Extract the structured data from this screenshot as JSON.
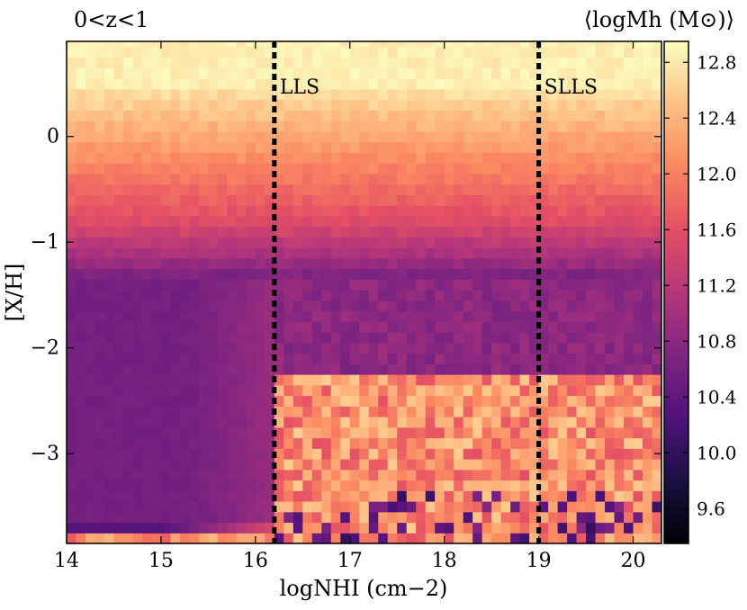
{
  "chart_data": {
    "type": "heatmap",
    "title_left": "0<z<1",
    "colorbar_label": "⟨logMh (M⊙)⟩",
    "xlabel": "logNHI (cm−2)",
    "ylabel": "[X/H]",
    "xlim": [
      14,
      20.3
    ],
    "ylim": [
      -3.85,
      0.9
    ],
    "zlim": [
      9.35,
      12.95
    ],
    "x_ticks": [
      14,
      15,
      16,
      17,
      18,
      19,
      20
    ],
    "x_tick_labels": [
      "14",
      "15",
      "16",
      "17",
      "18",
      "19",
      "20"
    ],
    "y_ticks": [
      0,
      -1,
      -2,
      -3
    ],
    "y_tick_labels": [
      "0",
      "−1",
      "−2",
      "−3"
    ],
    "colorbar_ticks": [
      12.8,
      12.4,
      12.0,
      11.6,
      11.2,
      10.8,
      10.4,
      10.0,
      9.6
    ],
    "colorbar_tick_labels": [
      "12.8",
      "12.4",
      "12.0",
      "11.6",
      "11.2",
      "10.8",
      "10.4",
      "10.0",
      "9.6"
    ],
    "colormap": "magma",
    "vlines": [
      {
        "x": 16.2,
        "label": "LLS"
      },
      {
        "x": 19.0,
        "label": "SLLS"
      }
    ],
    "grid": false
  }
}
